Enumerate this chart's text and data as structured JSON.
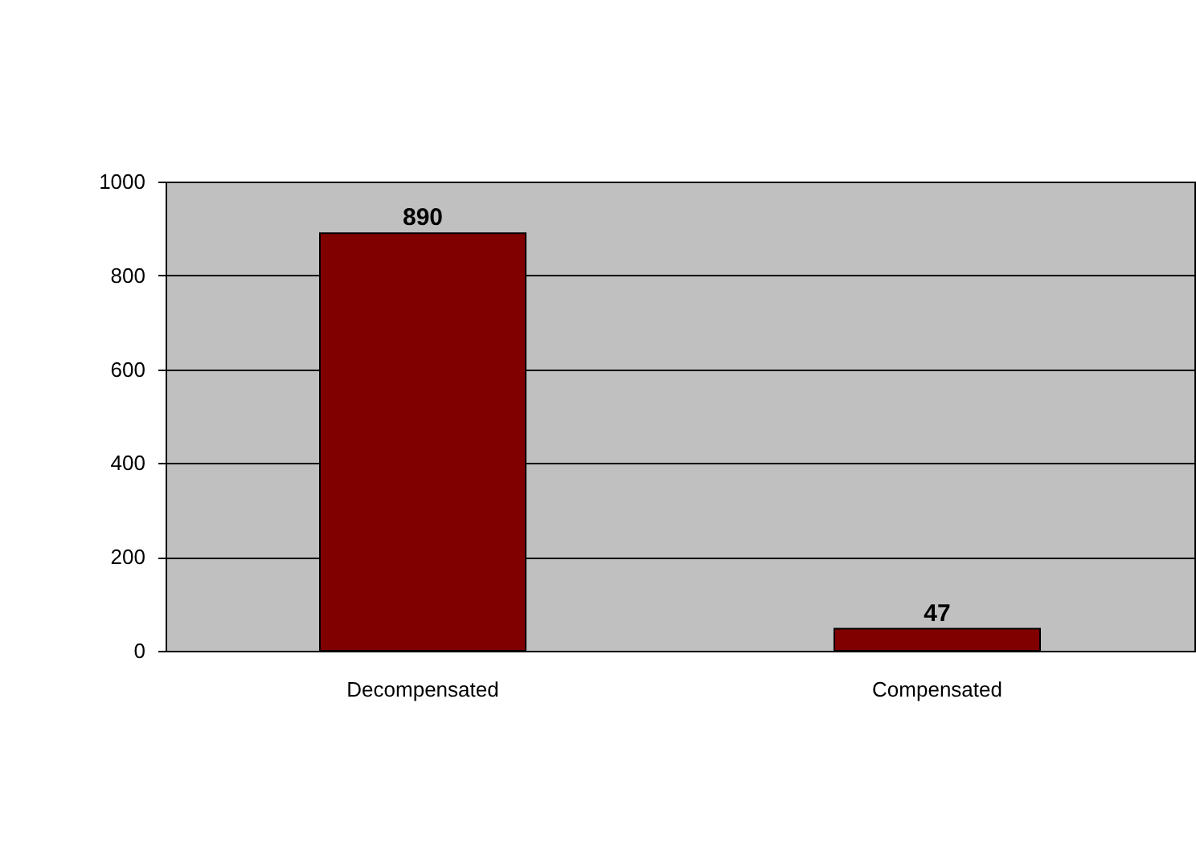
{
  "chart_data": {
    "type": "bar",
    "categories": [
      "Decompensated",
      "Compensated"
    ],
    "values": [
      890,
      47
    ],
    "color": "#800000",
    "ylim": [
      0,
      1000
    ],
    "yticks": [
      0,
      200,
      400,
      600,
      800,
      1000
    ],
    "grid": "y",
    "data_labels": true
  }
}
